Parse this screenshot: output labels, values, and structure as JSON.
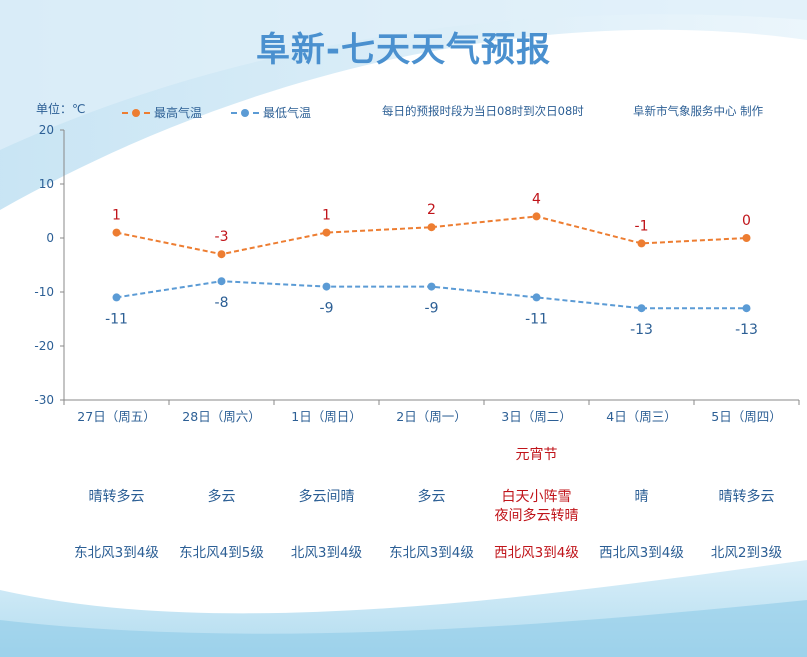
{
  "title": "阜新-七天天气预报",
  "unit_label": "单位：℃",
  "note_period": "每日的预报时段为当日08时到次日08时",
  "note_source": "阜新市气象服务中心 制作",
  "colors": {
    "high": "#ed7d31",
    "low": "#5b9bd5",
    "axis": "#888888",
    "text": "#2c5f95",
    "highlight": "#c0141a",
    "label_high": "#c0141a",
    "label_low": "#2c5f95"
  },
  "days": [
    {
      "date": "27日（周五）",
      "festival": "",
      "weather": [
        "晴转多云"
      ],
      "wind": "东北风3到4级",
      "highlight": false
    },
    {
      "date": "28日（周六）",
      "festival": "",
      "weather": [
        "多云"
      ],
      "wind": "东北风4到5级",
      "highlight": false
    },
    {
      "date": "1日（周日）",
      "festival": "",
      "weather": [
        "多云间晴"
      ],
      "wind": "北风3到4级",
      "highlight": false
    },
    {
      "date": "2日（周一）",
      "festival": "",
      "weather": [
        "多云"
      ],
      "wind": "东北风3到4级",
      "highlight": false
    },
    {
      "date": "3日（周二）",
      "festival": "元宵节",
      "weather": [
        "白天小阵雪",
        "夜间多云转晴"
      ],
      "wind": "西北风3到4级",
      "highlight": true
    },
    {
      "date": "4日（周三）",
      "festival": "",
      "weather": [
        "晴"
      ],
      "wind": "西北风3到4级",
      "highlight": false
    },
    {
      "date": "5日（周四）",
      "festival": "",
      "weather": [
        "晴转多云"
      ],
      "wind": "北风2到3级",
      "highlight": false
    }
  ],
  "chart_data": {
    "type": "line",
    "title": "阜新-七天天气预报",
    "ylabel": "单位：℃",
    "ylim": [
      -30,
      20
    ],
    "yticks": [
      20,
      10,
      0,
      -10,
      -20,
      -30
    ],
    "categories": [
      "27日（周五）",
      "28日（周六）",
      "1日（周日）",
      "2日（周一）",
      "3日（周二）",
      "4日（周三）",
      "5日（周四）"
    ],
    "series": [
      {
        "name": "最高气温",
        "values": [
          1,
          -3,
          1,
          2,
          4,
          -1,
          0
        ]
      },
      {
        "name": "最低气温",
        "values": [
          -11,
          -8,
          -9,
          -9,
          -11,
          -13,
          -13
        ]
      }
    ],
    "legend": "top-left",
    "grid": false
  }
}
